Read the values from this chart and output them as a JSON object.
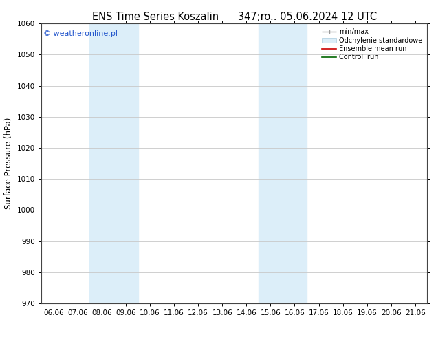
{
  "title_left": "ENS Time Series Koszalin",
  "title_right": "347;ro.. 05.06.2024 12 UTC",
  "ylabel": "Surface Pressure (hPa)",
  "ylim": [
    970,
    1060
  ],
  "yticks": [
    970,
    980,
    990,
    1000,
    1010,
    1020,
    1030,
    1040,
    1050,
    1060
  ],
  "xtick_labels": [
    "06.06",
    "07.06",
    "08.06",
    "09.06",
    "10.06",
    "11.06",
    "12.06",
    "13.06",
    "14.06",
    "15.06",
    "16.06",
    "17.06",
    "18.06",
    "19.06",
    "20.06",
    "21.06"
  ],
  "background_color": "#ffffff",
  "plot_bg_color": "#ffffff",
  "shaded_regions": [
    {
      "xstart": 2,
      "xend": 4,
      "color": "#dceef9"
    },
    {
      "xstart": 9,
      "xend": 11,
      "color": "#dceef9"
    }
  ],
  "watermark": "© weatheronline.pl",
  "watermark_color": "#2255cc",
  "grid_color": "#c8c8c8",
  "tick_label_fontsize": 7.5,
  "axis_label_fontsize": 8.5,
  "title_fontsize": 10.5
}
